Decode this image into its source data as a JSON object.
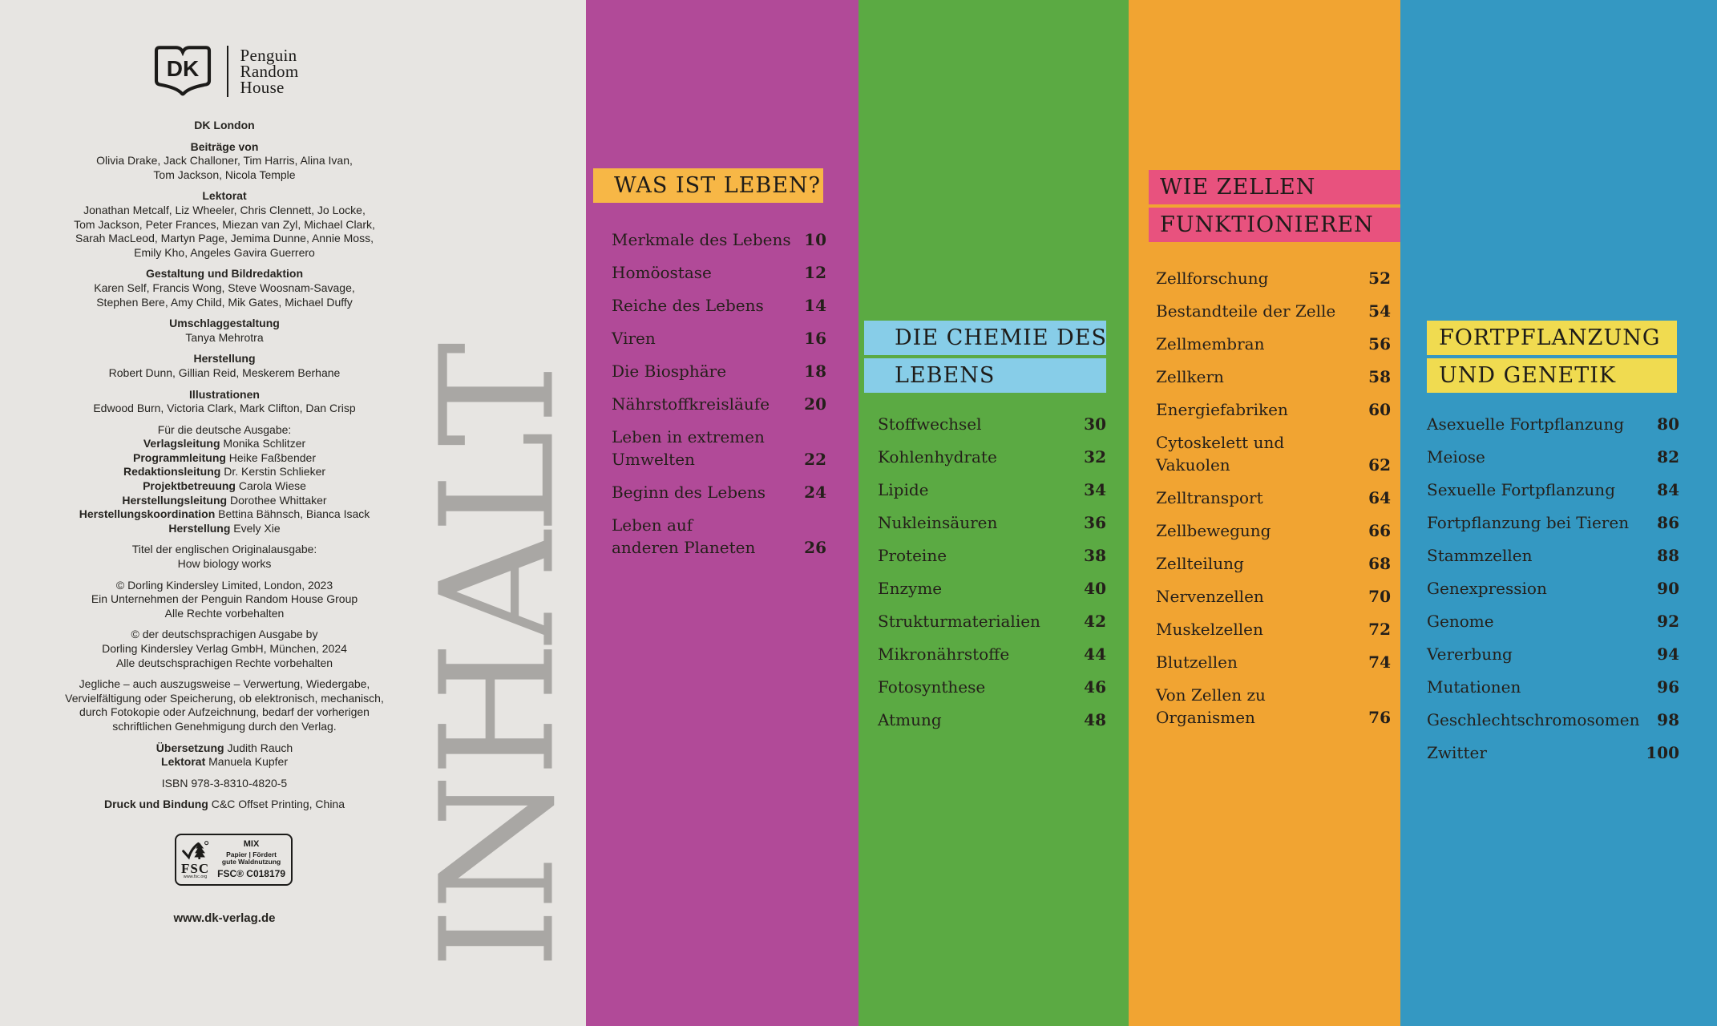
{
  "colors": {
    "imprint_bg": "#e7e5e2",
    "inhalt_text": "#a9a7a4",
    "col1_bg": "#b14a98",
    "col1_header_bg": "#f7b746",
    "col2_bg": "#5baa43",
    "col2_header_bg": "#87cde8",
    "col3_bg": "#f1a432",
    "col3_header_bg": "#e8527e",
    "col4_bg": "#3498c2",
    "col4_header_bg": "#f0db50",
    "text_dark": "#241f1a"
  },
  "logo": {
    "dk": "DK",
    "brand_lines": [
      "Penguin",
      "Random",
      "House"
    ]
  },
  "inhalt": "INHALT",
  "imprint": {
    "blocks": [
      {
        "title": "DK London",
        "lines": []
      },
      {
        "title": "Beiträge von",
        "lines": [
          "Olivia Drake, Jack Challoner, Tim Harris, Alina Ivan,",
          "Tom Jackson, Nicola Temple"
        ]
      },
      {
        "title": "Lektorat",
        "lines": [
          "Jonathan Metcalf, Liz Wheeler, Chris Clennett, Jo Locke,",
          "Tom Jackson, Peter Frances, Miezan van Zyl, Michael Clark,",
          "Sarah MacLeod, Martyn Page, Jemima Dunne, Annie Moss,",
          "Emily Kho, Angeles Gavira Guerrero"
        ]
      },
      {
        "title": "Gestaltung und Bildredaktion",
        "lines": [
          "Karen Self, Francis Wong, Steve Woosnam-Savage,",
          "Stephen Bere, Amy Child, Mik Gates, Michael Duffy"
        ]
      },
      {
        "title": "Umschlaggestaltung",
        "lines": [
          "Tanya Mehrotra"
        ]
      },
      {
        "title": "Herstellung",
        "lines": [
          "Robert Dunn, Gillian Reid, Meskerem Berhane"
        ]
      },
      {
        "title": "Illustrationen",
        "lines": [
          "Edwood Burn, Victoria Clark, Mark Clifton, Dan Crisp"
        ]
      },
      {
        "intro": "Für die deutsche Ausgabe:",
        "lines": [
          {
            "label": "Verlagsleitung",
            "text": "Monika Schlitzer"
          },
          {
            "label": "Programmleitung",
            "text": "Heike Faßbender"
          },
          {
            "label": "Redaktionsleitung",
            "text": "Dr. Kerstin Schlieker"
          },
          {
            "label": "Projektbetreuung",
            "text": "Carola Wiese"
          },
          {
            "label": "Herstellungsleitung",
            "text": "Dorothee Whittaker"
          },
          {
            "label": "Herstellungskoordination",
            "text": "Bettina Bähnsch, Bianca Isack"
          },
          {
            "label": "Herstellung",
            "text": "Evely Xie"
          }
        ]
      },
      {
        "lines": [
          "Titel der englischen Originalausgabe:",
          "How biology works"
        ]
      },
      {
        "lines": [
          "© Dorling Kindersley Limited, London, 2023",
          "Ein Unternehmen der Penguin Random House Group",
          "Alle Rechte vorbehalten"
        ]
      },
      {
        "lines": [
          "© der deutschsprachigen Ausgabe by",
          "Dorling Kindersley Verlag GmbH, München, 2024",
          "Alle deutschsprachigen Rechte vorbehalten"
        ]
      },
      {
        "lines": [
          "Jegliche – auch auszugsweise – Verwertung, Wiedergabe,",
          "Vervielfältigung oder Speicherung, ob elektronisch, mechanisch,",
          "durch Fotokopie oder Aufzeichnung, bedarf der vorherigen",
          "schriftlichen Genehmigung durch den Verlag."
        ]
      },
      {
        "lines": [
          {
            "label": "Übersetzung",
            "text": "Judith Rauch"
          },
          {
            "label": "Lektorat",
            "text": "Manuela Kupfer"
          }
        ]
      },
      {
        "lines": [
          "ISBN 978-3-8310-4820-5"
        ]
      },
      {
        "lines": [
          {
            "label": "Druck und Bindung",
            "text": "C&C Offset Printing, China"
          }
        ]
      }
    ],
    "fsc": {
      "acronym": "FSC",
      "url": "www.fsc.org",
      "mix": "MIX",
      "paper_line1": "Papier | Fördert",
      "paper_line2": "gute Waldnutzung",
      "cert": "FSC® C018179"
    },
    "website": "www.dk-verlag.de"
  },
  "toc": {
    "columns": [
      {
        "id": "was-ist-leben",
        "bg": "#b14a98",
        "header_bg": "#f7b746",
        "header_lines": [
          "WAS IST LEBEN?"
        ],
        "items": [
          {
            "lines": [
              "Merkmale des Lebens"
            ],
            "page": "10"
          },
          {
            "lines": [
              "Homöostase"
            ],
            "page": "12"
          },
          {
            "lines": [
              "Reiche des Lebens"
            ],
            "page": "14"
          },
          {
            "lines": [
              "Viren"
            ],
            "page": "16"
          },
          {
            "lines": [
              "Die Biosphäre"
            ],
            "page": "18"
          },
          {
            "lines": [
              "Nährstoffkreisläufe"
            ],
            "page": "20"
          },
          {
            "lines": [
              "Leben in extremen",
              "Umwelten"
            ],
            "page": "22"
          },
          {
            "lines": [
              "Beginn des Lebens"
            ],
            "page": "24"
          },
          {
            "lines": [
              "Leben auf",
              "anderen Planeten"
            ],
            "page": "26"
          }
        ]
      },
      {
        "id": "chemie-des-lebens",
        "bg": "#5baa43",
        "header_bg": "#87cde8",
        "header_lines": [
          "DIE CHEMIE DES",
          "LEBENS"
        ],
        "items": [
          {
            "lines": [
              "Stoffwechsel"
            ],
            "page": "30"
          },
          {
            "lines": [
              "Kohlenhydrate"
            ],
            "page": "32"
          },
          {
            "lines": [
              "Lipide"
            ],
            "page": "34"
          },
          {
            "lines": [
              "Nukleinsäuren"
            ],
            "page": "36"
          },
          {
            "lines": [
              "Proteine"
            ],
            "page": "38"
          },
          {
            "lines": [
              "Enzyme"
            ],
            "page": "40"
          },
          {
            "lines": [
              "Strukturmaterialien"
            ],
            "page": "42"
          },
          {
            "lines": [
              "Mikronährstoffe"
            ],
            "page": "44"
          },
          {
            "lines": [
              "Fotosynthese"
            ],
            "page": "46"
          },
          {
            "lines": [
              "Atmung"
            ],
            "page": "48"
          }
        ]
      },
      {
        "id": "wie-zellen-funktionieren",
        "bg": "#f1a432",
        "header_bg": "#e8527e",
        "header_lines": [
          "WIE ZELLEN",
          "FUNKTIONIEREN"
        ],
        "items": [
          {
            "lines": [
              "Zellforschung"
            ],
            "page": "52"
          },
          {
            "lines": [
              "Bestandteile der Zelle"
            ],
            "page": "54"
          },
          {
            "lines": [
              "Zellmembran"
            ],
            "page": "56"
          },
          {
            "lines": [
              "Zellkern"
            ],
            "page": "58"
          },
          {
            "lines": [
              "Energiefabriken"
            ],
            "page": "60"
          },
          {
            "lines": [
              "Cytoskelett und Vakuolen"
            ],
            "page": "62"
          },
          {
            "lines": [
              "Zelltransport"
            ],
            "page": "64"
          },
          {
            "lines": [
              "Zellbewegung"
            ],
            "page": "66"
          },
          {
            "lines": [
              "Zellteilung"
            ],
            "page": "68"
          },
          {
            "lines": [
              "Nervenzellen"
            ],
            "page": "70"
          },
          {
            "lines": [
              "Muskelzellen"
            ],
            "page": "72"
          },
          {
            "lines": [
              "Blutzellen"
            ],
            "page": "74"
          },
          {
            "lines": [
              "Von Zellen zu Organismen"
            ],
            "page": "76"
          }
        ]
      },
      {
        "id": "fortpflanzung-und-genetik",
        "bg": "#3498c2",
        "header_bg": "#f0db50",
        "header_lines": [
          "FORTPFLANZUNG",
          "UND GENETIK"
        ],
        "items": [
          {
            "lines": [
              "Asexuelle Fortpflanzung"
            ],
            "page": "80"
          },
          {
            "lines": [
              "Meiose"
            ],
            "page": "82"
          },
          {
            "lines": [
              "Sexuelle Fortpflanzung"
            ],
            "page": "84"
          },
          {
            "lines": [
              "Fortpflanzung bei Tieren"
            ],
            "page": "86"
          },
          {
            "lines": [
              "Stammzellen"
            ],
            "page": "88"
          },
          {
            "lines": [
              "Genexpression"
            ],
            "page": "90"
          },
          {
            "lines": [
              "Genome"
            ],
            "page": "92"
          },
          {
            "lines": [
              "Vererbung"
            ],
            "page": "94"
          },
          {
            "lines": [
              "Mutationen"
            ],
            "page": "96"
          },
          {
            "lines": [
              "Geschlechtschromosomen"
            ],
            "page": "98"
          },
          {
            "lines": [
              "Zwitter"
            ],
            "page": "100"
          }
        ]
      }
    ]
  }
}
